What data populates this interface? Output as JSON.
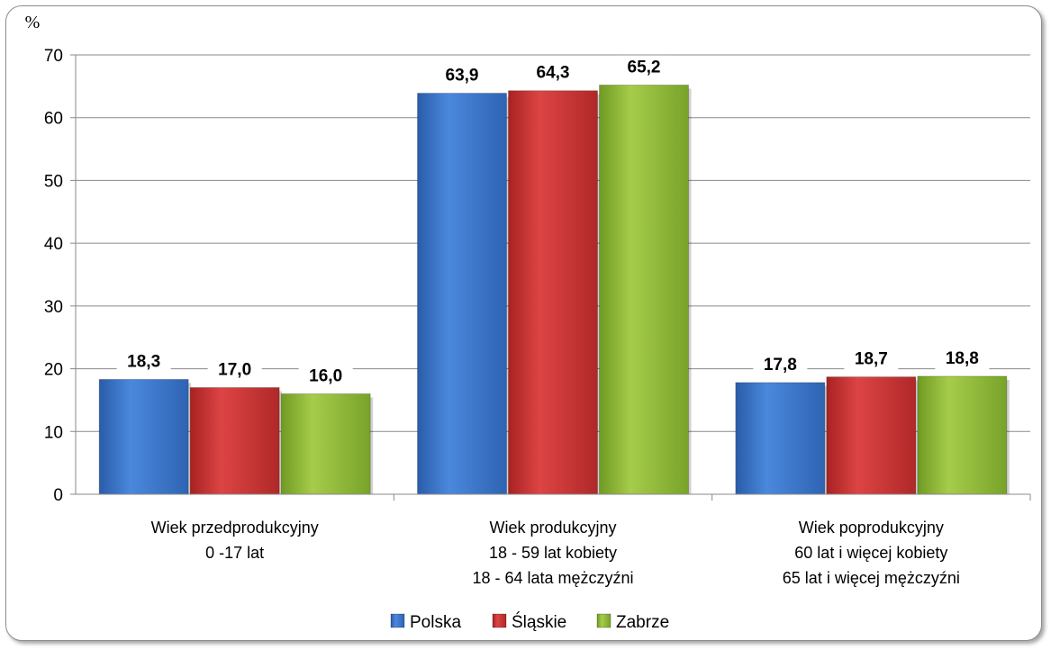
{
  "chart_data": {
    "type": "bar",
    "unit_label": "%",
    "categories": [
      [
        "Wiek przedprodukcyjny",
        "0 -17 lat"
      ],
      [
        "Wiek produkcyjny",
        "18 - 59 lat kobiety",
        "18 - 64 lata mężczyźni"
      ],
      [
        "Wiek poprodukcyjny",
        "60 lat i więcej kobiety",
        "65 lat i więcej mężczyźni"
      ]
    ],
    "series": [
      {
        "name": "Polska",
        "values": [
          18.3,
          63.9,
          17.8
        ],
        "labels": [
          "18,3",
          "63,9",
          "17,8"
        ],
        "color": "#3a74cc"
      },
      {
        "name": "Śląskie",
        "values": [
          17.0,
          64.3,
          18.7
        ],
        "labels": [
          "17,0",
          "64,3",
          "18,7"
        ],
        "color": "#cc3333"
      },
      {
        "name": "Zabrze",
        "values": [
          16.0,
          65.2,
          18.8
        ],
        "labels": [
          "16,0",
          "65,2",
          "18,8"
        ],
        "color": "#8fb83a"
      }
    ],
    "y_ticks": [
      "0",
      "10",
      "20",
      "30",
      "40",
      "50",
      "60",
      "70"
    ],
    "ylim": [
      0,
      70
    ],
    "grid": true,
    "legend_position": "bottom"
  }
}
